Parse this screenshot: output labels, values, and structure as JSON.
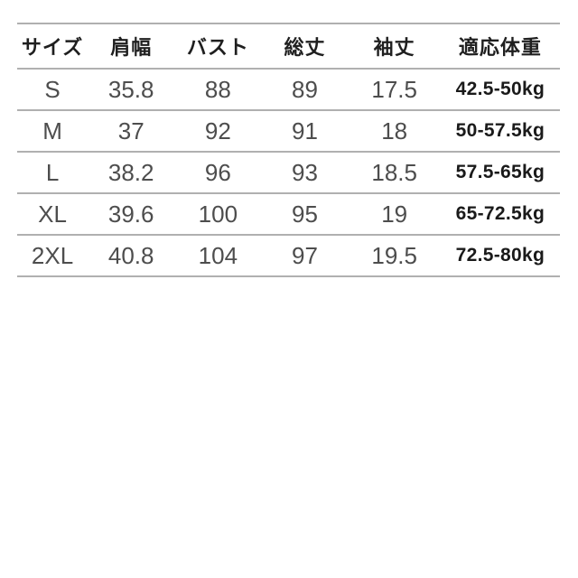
{
  "chart_data": {
    "type": "table",
    "columns": [
      "サイズ",
      "肩幅",
      "バスト",
      "総丈",
      "袖丈",
      "適応体重"
    ],
    "rows": [
      [
        "S",
        "35.8",
        "88",
        "89",
        "17.5",
        "42.5-50kg"
      ],
      [
        "M",
        "37",
        "92",
        "91",
        "18",
        "50-57.5kg"
      ],
      [
        "L",
        "38.2",
        "96",
        "93",
        "18.5",
        "57.5-65kg"
      ],
      [
        "XL",
        "39.6",
        "100",
        "95",
        "19",
        "65-72.5kg"
      ],
      [
        "2XL",
        "40.8",
        "104",
        "97",
        "19.5",
        "72.5-80kg"
      ]
    ],
    "layout_hints": {
      "grid": "horizontal-rules-only",
      "rule_color": "#b0b0b0",
      "header_text_color": "#1f1f1f",
      "value_text_color": "#4d4d4d",
      "weight_text_color": "#1a1a1a",
      "background": "#ffffff"
    }
  }
}
